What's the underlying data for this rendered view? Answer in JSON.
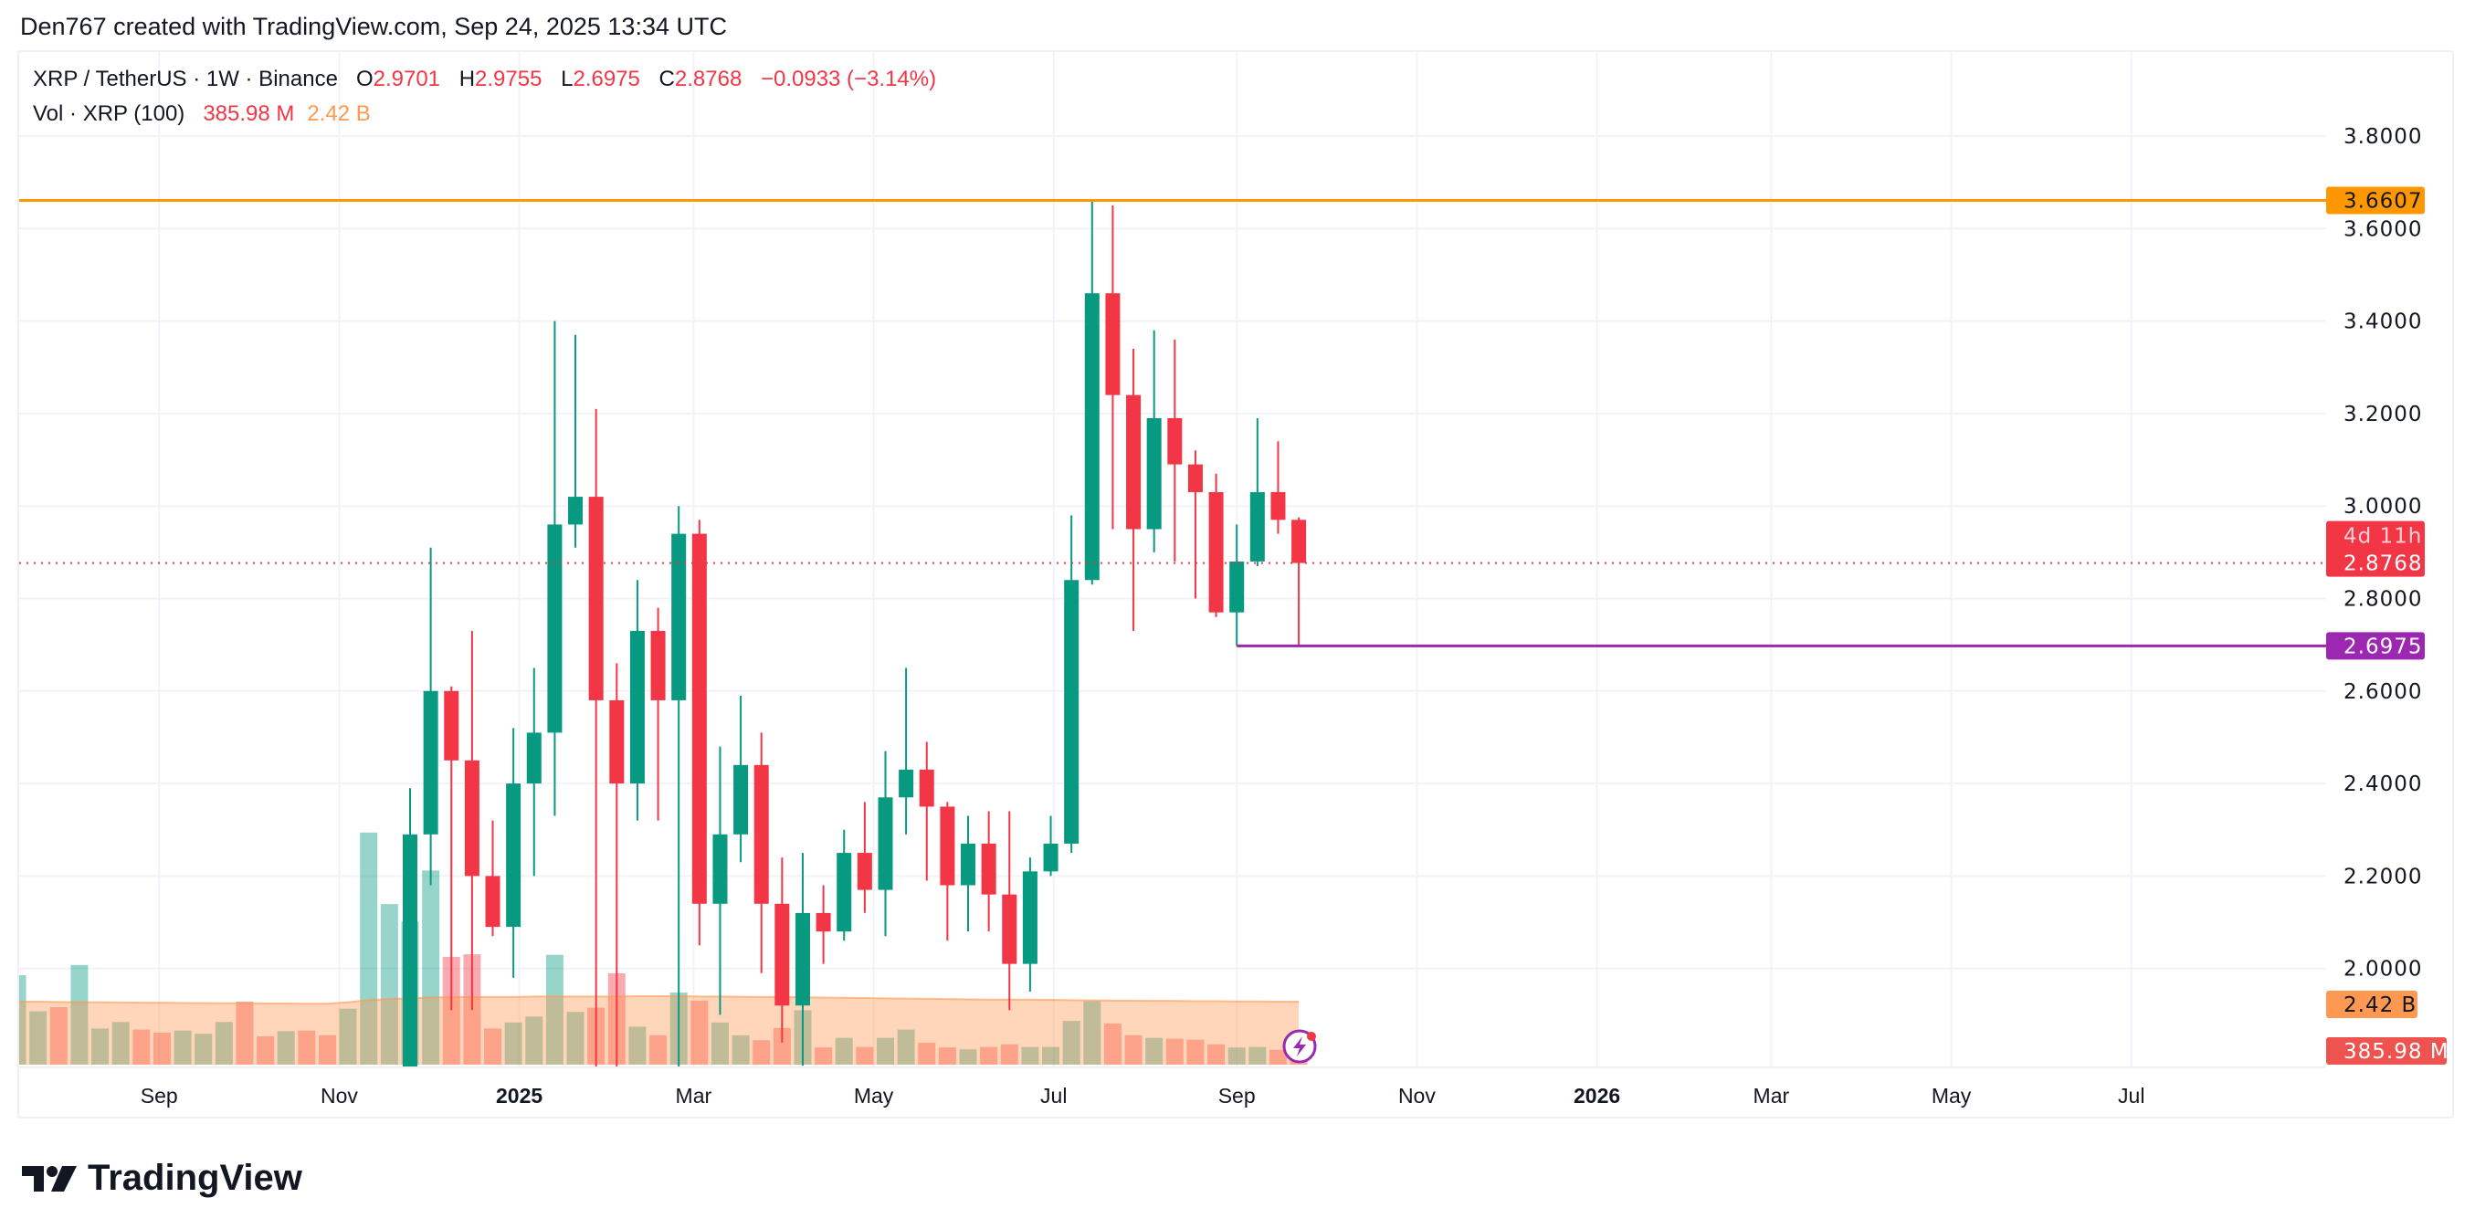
{
  "credit": "Den767 created with TradingView.com, Sep 24, 2025 13:34 UTC",
  "legend": {
    "symbol": "XRP / TetherUS · 1W · Binance",
    "o_label": "O",
    "o": "2.9701",
    "h_label": "H",
    "h": "2.9755",
    "l_label": "L",
    "l": "2.6975",
    "c_label": "C",
    "c": "2.8768",
    "change": "−0.0933 (−3.14%)",
    "vol_label": "Vol · XRP (100)",
    "vol_value": "385.98 M",
    "vol_ma": "2.42 B"
  },
  "brand": "TradingView",
  "colors": {
    "up": "#089981",
    "down": "#f23645",
    "resistance": "#ff9800",
    "support": "#9c27b0",
    "vol_ma": "#ff9850"
  },
  "chart_data": {
    "type": "candlestick",
    "interval": "1W",
    "ylim": [
      1.8,
      3.85
    ],
    "grid": true,
    "price_ticks": [
      "3.8000",
      "3.6000",
      "3.4000",
      "3.2000",
      "3.0000",
      "2.8000",
      "2.6000",
      "2.4000",
      "2.2000",
      "2.0000"
    ],
    "time_ticks": [
      {
        "label": "Sep",
        "date": "2024-09-01",
        "bold": false
      },
      {
        "label": "Nov",
        "date": "2024-11-01",
        "bold": false
      },
      {
        "label": "2025",
        "date": "2025-01-01",
        "bold": true
      },
      {
        "label": "Mar",
        "date": "2025-03-01",
        "bold": false
      },
      {
        "label": "May",
        "date": "2025-05-01",
        "bold": false
      },
      {
        "label": "Jul",
        "date": "2025-07-01",
        "bold": false
      },
      {
        "label": "Sep",
        "date": "2025-09-01",
        "bold": false
      },
      {
        "label": "Nov",
        "date": "2025-11-01",
        "bold": false
      },
      {
        "label": "2026",
        "date": "2026-01-01",
        "bold": true
      },
      {
        "label": "Mar",
        "date": "2026-03-01",
        "bold": false
      },
      {
        "label": "May",
        "date": "2026-05-01",
        "bold": false
      },
      {
        "label": "Jul",
        "date": "2026-07-01",
        "bold": false
      }
    ],
    "horizontal_lines": [
      {
        "price": 3.6607,
        "label": "3.6607",
        "color": "#ff9800",
        "from": "start"
      },
      {
        "price": 2.6975,
        "label": "2.6975",
        "color": "#9c27b0",
        "from": "2025-09-01"
      }
    ],
    "last_price": {
      "price": 2.8768,
      "label": "2.8768",
      "countdown": "4d 11h"
    },
    "volume_labels": {
      "ma": "2.42 B",
      "last": "385.98 M"
    },
    "candles": [
      {
        "t": "2024-11-25",
        "o": 1.44,
        "h": 2.39,
        "l": 1.27,
        "c": 2.29
      },
      {
        "t": "2024-12-02",
        "o": 2.29,
        "h": 2.91,
        "l": 2.18,
        "c": 2.6
      },
      {
        "t": "2024-12-09",
        "o": 2.6,
        "h": 2.61,
        "l": 1.91,
        "c": 2.45
      },
      {
        "t": "2024-12-16",
        "o": 2.45,
        "h": 2.73,
        "l": 1.91,
        "c": 2.2
      },
      {
        "t": "2024-12-23",
        "o": 2.2,
        "h": 2.32,
        "l": 2.07,
        "c": 2.09
      },
      {
        "t": "2024-12-30",
        "o": 2.09,
        "h": 2.52,
        "l": 1.98,
        "c": 2.4
      },
      {
        "t": "2025-01-06",
        "o": 2.4,
        "h": 2.65,
        "l": 2.2,
        "c": 2.51
      },
      {
        "t": "2025-01-13",
        "o": 2.51,
        "h": 3.4,
        "l": 2.33,
        "c": 2.96
      },
      {
        "t": "2025-01-20",
        "o": 2.96,
        "h": 3.37,
        "l": 2.91,
        "c": 3.02
      },
      {
        "t": "2025-01-27",
        "o": 3.02,
        "h": 3.21,
        "l": 1.77,
        "c": 2.58
      },
      {
        "t": "2025-02-03",
        "o": 2.58,
        "h": 2.66,
        "l": 1.77,
        "c": 2.4
      },
      {
        "t": "2025-02-10",
        "o": 2.4,
        "h": 2.84,
        "l": 2.32,
        "c": 2.73
      },
      {
        "t": "2025-02-17",
        "o": 2.73,
        "h": 2.78,
        "l": 2.32,
        "c": 2.58
      },
      {
        "t": "2025-02-24",
        "o": 2.58,
        "h": 3.0,
        "l": 1.77,
        "c": 2.94
      },
      {
        "t": "2025-03-03",
        "o": 2.94,
        "h": 2.97,
        "l": 2.05,
        "c": 2.14
      },
      {
        "t": "2025-03-10",
        "o": 2.14,
        "h": 2.48,
        "l": 1.9,
        "c": 2.29
      },
      {
        "t": "2025-03-17",
        "o": 2.29,
        "h": 2.59,
        "l": 2.23,
        "c": 2.44
      },
      {
        "t": "2025-03-24",
        "o": 2.44,
        "h": 2.51,
        "l": 1.99,
        "c": 2.14
      },
      {
        "t": "2025-03-31",
        "o": 2.14,
        "h": 2.24,
        "l": 1.84,
        "c": 1.92
      },
      {
        "t": "2025-04-07",
        "o": 1.92,
        "h": 2.25,
        "l": 1.79,
        "c": 2.12
      },
      {
        "t": "2025-04-14",
        "o": 2.12,
        "h": 2.18,
        "l": 2.01,
        "c": 2.08
      },
      {
        "t": "2025-04-21",
        "o": 2.08,
        "h": 2.3,
        "l": 2.06,
        "c": 2.25
      },
      {
        "t": "2025-04-28",
        "o": 2.25,
        "h": 2.36,
        "l": 2.12,
        "c": 2.17
      },
      {
        "t": "2025-05-05",
        "o": 2.17,
        "h": 2.47,
        "l": 2.07,
        "c": 2.37
      },
      {
        "t": "2025-05-12",
        "o": 2.37,
        "h": 2.65,
        "l": 2.29,
        "c": 2.43
      },
      {
        "t": "2025-05-19",
        "o": 2.43,
        "h": 2.49,
        "l": 2.19,
        "c": 2.35
      },
      {
        "t": "2025-05-26",
        "o": 2.35,
        "h": 2.36,
        "l": 2.06,
        "c": 2.18
      },
      {
        "t": "2025-06-02",
        "o": 2.18,
        "h": 2.33,
        "l": 2.08,
        "c": 2.27
      },
      {
        "t": "2025-06-09",
        "o": 2.27,
        "h": 2.34,
        "l": 2.08,
        "c": 2.16
      },
      {
        "t": "2025-06-16",
        "o": 2.16,
        "h": 2.34,
        "l": 1.91,
        "c": 2.01
      },
      {
        "t": "2025-06-23",
        "o": 2.01,
        "h": 2.24,
        "l": 1.95,
        "c": 2.21
      },
      {
        "t": "2025-06-30",
        "o": 2.21,
        "h": 2.33,
        "l": 2.2,
        "c": 2.27
      },
      {
        "t": "2025-07-07",
        "o": 2.27,
        "h": 2.98,
        "l": 2.25,
        "c": 2.84
      },
      {
        "t": "2025-07-14",
        "o": 2.84,
        "h": 3.6607,
        "l": 2.83,
        "c": 3.46
      },
      {
        "t": "2025-07-21",
        "o": 3.46,
        "h": 3.65,
        "l": 2.95,
        "c": 3.24
      },
      {
        "t": "2025-07-28",
        "o": 3.24,
        "h": 3.34,
        "l": 2.73,
        "c": 2.95
      },
      {
        "t": "2025-08-04",
        "o": 2.95,
        "h": 3.38,
        "l": 2.9,
        "c": 3.19
      },
      {
        "t": "2025-08-11",
        "o": 3.19,
        "h": 3.36,
        "l": 2.88,
        "c": 3.09
      },
      {
        "t": "2025-08-18",
        "o": 3.09,
        "h": 3.12,
        "l": 2.8,
        "c": 3.03
      },
      {
        "t": "2025-08-25",
        "o": 3.03,
        "h": 3.07,
        "l": 2.76,
        "c": 2.77
      },
      {
        "t": "2025-09-01",
        "o": 2.77,
        "h": 2.96,
        "l": 2.6975,
        "c": 2.88
      },
      {
        "t": "2025-09-08",
        "o": 2.88,
        "h": 3.19,
        "l": 2.87,
        "c": 3.03
      },
      {
        "t": "2025-09-15",
        "o": 3.03,
        "h": 3.14,
        "l": 2.94,
        "c": 2.9701
      },
      {
        "t": "2025-09-22",
        "o": 2.9701,
        "h": 2.9755,
        "l": 2.6975,
        "c": 2.8768
      }
    ],
    "volume_billions": [
      {
        "t": "2024-07-15",
        "v": 3.44,
        "up": true
      },
      {
        "t": "2024-07-22",
        "v": 2.05,
        "up": true
      },
      {
        "t": "2024-07-29",
        "v": 2.21,
        "up": false
      },
      {
        "t": "2024-08-05",
        "v": 3.83,
        "up": true
      },
      {
        "t": "2024-08-12",
        "v": 1.39,
        "up": true
      },
      {
        "t": "2024-08-19",
        "v": 1.64,
        "up": true
      },
      {
        "t": "2024-08-26",
        "v": 1.35,
        "up": false
      },
      {
        "t": "2024-09-02",
        "v": 1.23,
        "up": false
      },
      {
        "t": "2024-09-09",
        "v": 1.31,
        "up": true
      },
      {
        "t": "2024-09-16",
        "v": 1.19,
        "up": true
      },
      {
        "t": "2024-09-23",
        "v": 1.64,
        "up": true
      },
      {
        "t": "2024-09-30",
        "v": 2.42,
        "up": false
      },
      {
        "t": "2024-10-07",
        "v": 1.09,
        "up": false
      },
      {
        "t": "2024-10-14",
        "v": 1.29,
        "up": true
      },
      {
        "t": "2024-10-21",
        "v": 1.31,
        "up": false
      },
      {
        "t": "2024-10-28",
        "v": 1.13,
        "up": false
      },
      {
        "t": "2024-11-04",
        "v": 2.15,
        "up": true
      },
      {
        "t": "2024-11-11",
        "v": 8.92,
        "up": true
      },
      {
        "t": "2024-11-18",
        "v": 6.17,
        "up": true
      },
      {
        "t": "2024-11-25",
        "v": 5.5,
        "up": true
      },
      {
        "t": "2024-12-02",
        "v": 7.46,
        "up": true
      },
      {
        "t": "2024-12-09",
        "v": 4.14,
        "up": false
      },
      {
        "t": "2024-12-16",
        "v": 4.24,
        "up": false
      },
      {
        "t": "2024-12-23",
        "v": 1.39,
        "up": false
      },
      {
        "t": "2024-12-30",
        "v": 1.62,
        "up": true
      },
      {
        "t": "2025-01-06",
        "v": 1.85,
        "up": true
      },
      {
        "t": "2025-01-13",
        "v": 4.22,
        "up": true
      },
      {
        "t": "2025-01-20",
        "v": 2.03,
        "up": true
      },
      {
        "t": "2025-01-27",
        "v": 2.19,
        "up": false
      },
      {
        "t": "2025-02-03",
        "v": 3.51,
        "up": false
      },
      {
        "t": "2025-02-10",
        "v": 1.46,
        "up": true
      },
      {
        "t": "2025-02-17",
        "v": 1.13,
        "up": false
      },
      {
        "t": "2025-02-24",
        "v": 2.77,
        "up": true
      },
      {
        "t": "2025-03-03",
        "v": 2.46,
        "up": false
      },
      {
        "t": "2025-03-10",
        "v": 1.62,
        "up": true
      },
      {
        "t": "2025-03-17",
        "v": 1.13,
        "up": true
      },
      {
        "t": "2025-03-24",
        "v": 0.94,
        "up": false
      },
      {
        "t": "2025-03-31",
        "v": 1.41,
        "up": false
      },
      {
        "t": "2025-04-07",
        "v": 2.09,
        "up": true
      },
      {
        "t": "2025-04-14",
        "v": 0.66,
        "up": false
      },
      {
        "t": "2025-04-21",
        "v": 1.03,
        "up": true
      },
      {
        "t": "2025-04-28",
        "v": 0.68,
        "up": false
      },
      {
        "t": "2025-05-05",
        "v": 1.03,
        "up": true
      },
      {
        "t": "2025-05-12",
        "v": 1.35,
        "up": true
      },
      {
        "t": "2025-05-19",
        "v": 0.84,
        "up": false
      },
      {
        "t": "2025-05-26",
        "v": 0.66,
        "up": false
      },
      {
        "t": "2025-06-02",
        "v": 0.59,
        "up": true
      },
      {
        "t": "2025-06-09",
        "v": 0.68,
        "up": false
      },
      {
        "t": "2025-06-16",
        "v": 0.78,
        "up": false
      },
      {
        "t": "2025-06-23",
        "v": 0.68,
        "up": true
      },
      {
        "t": "2025-06-30",
        "v": 0.68,
        "up": true
      },
      {
        "t": "2025-07-07",
        "v": 1.68,
        "up": true
      },
      {
        "t": "2025-07-14",
        "v": 2.44,
        "up": true
      },
      {
        "t": "2025-07-21",
        "v": 1.58,
        "up": false
      },
      {
        "t": "2025-07-28",
        "v": 1.13,
        "up": false
      },
      {
        "t": "2025-08-04",
        "v": 1.03,
        "up": true
      },
      {
        "t": "2025-08-11",
        "v": 1.0,
        "up": false
      },
      {
        "t": "2025-08-18",
        "v": 0.96,
        "up": false
      },
      {
        "t": "2025-08-25",
        "v": 0.78,
        "up": false
      },
      {
        "t": "2025-09-01",
        "v": 0.66,
        "up": true
      },
      {
        "t": "2025-09-08",
        "v": 0.68,
        "up": true
      },
      {
        "t": "2025-09-15",
        "v": 0.57,
        "up": false
      },
      {
        "t": "2025-09-22",
        "v": 0.386,
        "up": false
      }
    ],
    "volume_ma_billions": [
      2.42,
      2.42,
      2.41,
      2.4,
      2.4,
      2.39,
      2.38,
      2.38,
      2.37,
      2.37,
      2.36,
      2.36,
      2.35,
      2.35,
      2.34,
      2.34,
      2.4,
      2.48,
      2.52,
      2.55,
      2.58,
      2.6,
      2.6,
      2.6,
      2.6,
      2.62,
      2.62,
      2.62,
      2.62,
      2.62,
      2.63,
      2.63,
      2.63,
      2.62,
      2.62,
      2.61,
      2.6,
      2.6,
      2.59,
      2.58,
      2.57,
      2.56,
      2.55,
      2.54,
      2.53,
      2.52,
      2.51,
      2.5,
      2.5,
      2.5,
      2.49,
      2.48,
      2.47,
      2.46,
      2.46,
      2.45,
      2.45,
      2.44,
      2.44,
      2.43,
      2.43,
      2.42,
      2.42
    ]
  }
}
